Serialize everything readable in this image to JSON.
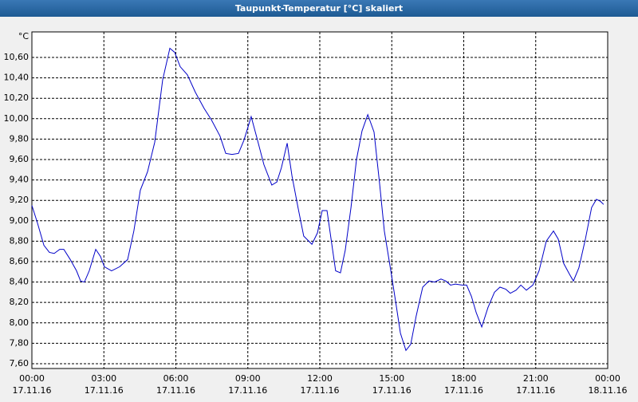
{
  "window_title": "Taupunkt-Temperatur [°C] skaliert",
  "chart_data": {
    "type": "line",
    "y_unit": "°C",
    "x": [
      0,
      0.23,
      0.5,
      0.73,
      0.93,
      1.16,
      1.33,
      1.6,
      1.86,
      2.03,
      2.19,
      2.39,
      2.66,
      2.86,
      3.02,
      3.32,
      3.66,
      3.99,
      4.25,
      4.52,
      4.82,
      5.12,
      5.45,
      5.75,
      5.95,
      6.18,
      6.48,
      6.81,
      7.18,
      7.48,
      7.84,
      8.08,
      8.34,
      8.61,
      8.84,
      9.14,
      9.37,
      9.67,
      10,
      10.21,
      10.4,
      10.64,
      10.84,
      11.1,
      11.33,
      11.67,
      11.9,
      12.1,
      12.3,
      12.47,
      12.66,
      12.86,
      13.06,
      13.3,
      13.53,
      13.76,
      14,
      14.26,
      14.49,
      14.69,
      14.96,
      15.16,
      15.36,
      15.59,
      15.79,
      16.02,
      16.29,
      16.55,
      16.79,
      17.05,
      17.25,
      17.45,
      17.65,
      17.92,
      18.12,
      18.32,
      18.52,
      18.75,
      19.01,
      19.28,
      19.51,
      19.75,
      19.94,
      20.18,
      20.38,
      20.61,
      20.88,
      21.14,
      21.44,
      21.74,
      21.94,
      22.17,
      22.4,
      22.57,
      22.8,
      23.07,
      23.33,
      23.53,
      23.7,
      23.83
    ],
    "series": [
      {
        "color": "#0000c8",
        "values": [
          9.15,
          8.98,
          8.76,
          8.69,
          8.68,
          8.72,
          8.72,
          8.62,
          8.51,
          8.41,
          8.4,
          8.51,
          8.72,
          8.65,
          8.55,
          8.51,
          8.55,
          8.62,
          8.9,
          9.3,
          9.48,
          9.77,
          10.38,
          10.69,
          10.65,
          10.51,
          10.43,
          10.26,
          10.1,
          9.99,
          9.83,
          9.66,
          9.65,
          9.66,
          9.79,
          10.02,
          9.82,
          9.55,
          9.35,
          9.38,
          9.52,
          9.76,
          9.44,
          9.12,
          8.85,
          8.77,
          8.88,
          9.1,
          9.1,
          8.82,
          8.51,
          8.49,
          8.71,
          9.13,
          9.6,
          9.88,
          10.04,
          9.87,
          9.37,
          8.9,
          8.51,
          8.21,
          7.9,
          7.73,
          7.79,
          8.07,
          8.35,
          8.41,
          8.4,
          8.43,
          8.41,
          8.37,
          8.38,
          8.37,
          8.37,
          8.26,
          8.1,
          7.96,
          8.15,
          8.3,
          8.35,
          8.33,
          8.29,
          8.32,
          8.37,
          8.32,
          8.37,
          8.51,
          8.8,
          8.9,
          8.82,
          8.58,
          8.48,
          8.41,
          8.54,
          8.82,
          9.13,
          9.21,
          9.19,
          9.16
        ]
      }
    ],
    "xlim": [
      0,
      24
    ],
    "ylim": [
      7.553,
      10.85
    ],
    "grid": true,
    "xticks": [
      {
        "value": 0,
        "label": "00:00",
        "date": "17.11.16"
      },
      {
        "value": 3,
        "label": "03:00",
        "date": "17.11.16"
      },
      {
        "value": 6,
        "label": "06:00",
        "date": "17.11.16"
      },
      {
        "value": 9,
        "label": "09:00",
        "date": "17.11.16"
      },
      {
        "value": 12,
        "label": "12:00",
        "date": "17.11.16"
      },
      {
        "value": 15,
        "label": "15:00",
        "date": "17.11.16"
      },
      {
        "value": 18,
        "label": "18:00",
        "date": "17.11.16"
      },
      {
        "value": 21,
        "label": "21:00",
        "date": "17.11.16"
      },
      {
        "value": 24,
        "label": "00:00",
        "date": "18.11.16"
      }
    ],
    "yticks": [
      {
        "value": 7.6,
        "label": "7,60"
      },
      {
        "value": 7.8,
        "label": "7,80"
      },
      {
        "value": 8.0,
        "label": "8,00"
      },
      {
        "value": 8.2,
        "label": "8,20"
      },
      {
        "value": 8.4,
        "label": "8,40"
      },
      {
        "value": 8.6,
        "label": "8,60"
      },
      {
        "value": 8.8,
        "label": "8,80"
      },
      {
        "value": 9.0,
        "label": "9,00"
      },
      {
        "value": 9.2,
        "label": "9,20"
      },
      {
        "value": 9.4,
        "label": "9,40"
      },
      {
        "value": 9.6,
        "label": "9,60"
      },
      {
        "value": 9.8,
        "label": "9,80"
      },
      {
        "value": 10.0,
        "label": "10,00"
      },
      {
        "value": 10.2,
        "label": "10,20"
      },
      {
        "value": 10.4,
        "label": "10,40"
      },
      {
        "value": 10.6,
        "label": "10,60"
      }
    ]
  }
}
